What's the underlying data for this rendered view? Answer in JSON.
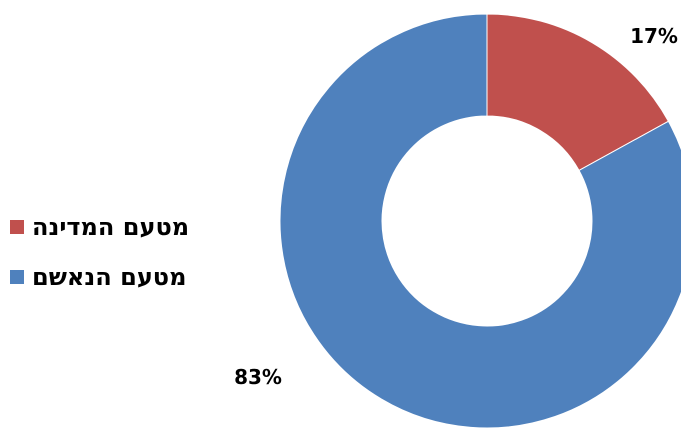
{
  "chart_data": {
    "type": "pie",
    "donut": true,
    "title": "",
    "legend_position": "left",
    "categories": [
      "מטעם המדינה",
      "מטעם הנאשם"
    ],
    "values": [
      17,
      83
    ],
    "labels": [
      "17%",
      "83%"
    ],
    "colors": [
      "#C0504D",
      "#4F81BD"
    ],
    "start_angle_deg": 0,
    "direction": "clockwise"
  }
}
